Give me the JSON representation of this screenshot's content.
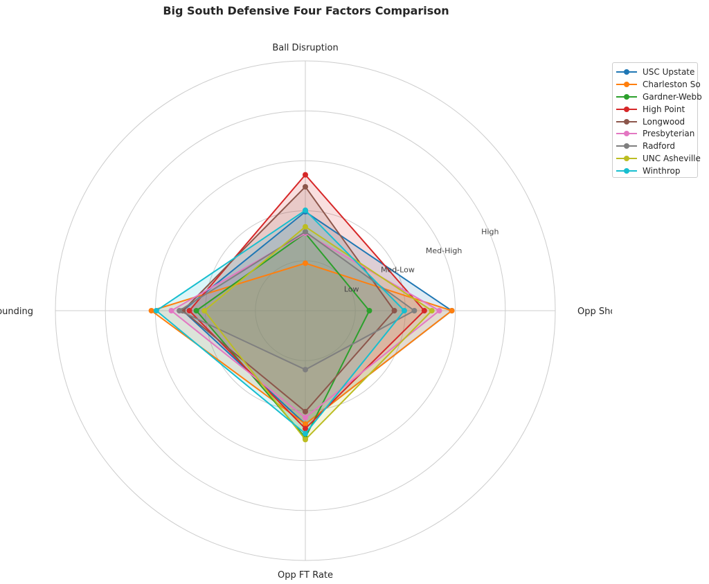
{
  "title": "Big South Defensive Four Factors Comparison",
  "chart_data": {
    "type": "radar",
    "title": "Big South Defensive Four Factors Comparison",
    "axes": [
      "Opp Shooting",
      "Ball Disruption",
      "Def Rebounding",
      "Opp FT Rate"
    ],
    "rlim": [
      0,
      5
    ],
    "ring_labels": [
      "Low",
      "Med-Low",
      "Med-High",
      "High"
    ],
    "ring_values": [
      1,
      2,
      3,
      4
    ],
    "grid": true,
    "legend_position": "upper-right-outside",
    "series": [
      {
        "name": "USC Upstate",
        "color": "#1f77b4",
        "values": [
          2.93,
          1.98,
          2.45,
          2.27
        ]
      },
      {
        "name": "Charleston So",
        "color": "#ff7f0e",
        "values": [
          2.93,
          0.95,
          3.08,
          2.27
        ]
      },
      {
        "name": "Gardner-Webb",
        "color": "#2ca02c",
        "values": [
          1.28,
          1.55,
          2.18,
          2.54
        ]
      },
      {
        "name": "High Point",
        "color": "#d62728",
        "values": [
          2.38,
          2.72,
          2.32,
          2.36
        ]
      },
      {
        "name": "Longwood",
        "color": "#8c564b",
        "values": [
          1.78,
          2.48,
          2.45,
          2.02
        ]
      },
      {
        "name": "Presbyterian",
        "color": "#e377c2",
        "values": [
          2.68,
          1.55,
          2.68,
          2.14
        ]
      },
      {
        "name": "Radford",
        "color": "#7f7f7f",
        "values": [
          2.18,
          1.58,
          2.52,
          1.18
        ]
      },
      {
        "name": "UNC Asheville",
        "color": "#bcbd22",
        "values": [
          2.53,
          1.68,
          2.02,
          2.58
        ]
      },
      {
        "name": "Winthrop",
        "color": "#17becf",
        "values": [
          1.98,
          2.01,
          2.98,
          2.46
        ]
      }
    ]
  }
}
